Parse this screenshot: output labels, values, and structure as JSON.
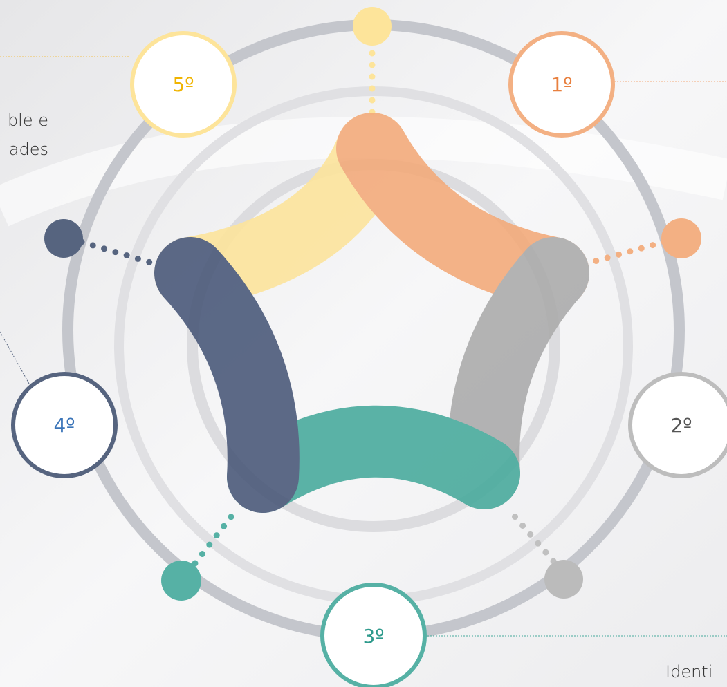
{
  "text_fragments": [
    "ble e",
    "ades",
    "Identi"
  ],
  "nodes": [
    {
      "label": "1º"
    },
    {
      "label": "2º"
    },
    {
      "label": "3º"
    },
    {
      "label": "4º"
    },
    {
      "label": "5º"
    }
  ]
}
